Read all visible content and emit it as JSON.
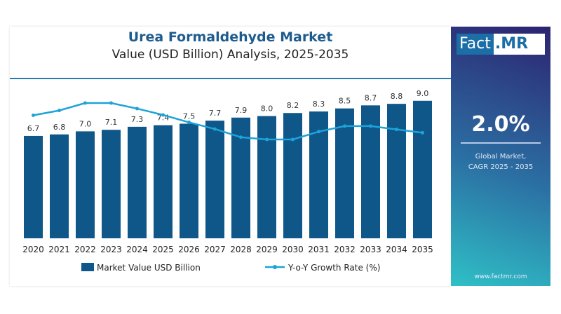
{
  "header": {
    "title": "Urea Formaldehyde Market",
    "subtitle": "Value (USD Billion) Analysis, 2025-2035"
  },
  "panel": {
    "logo_part1": "Fact",
    "logo_part2": ".MR",
    "cagr": "2.0%",
    "caption_line1": "Global Market,",
    "caption_line2": "CAGR 2025 - 2035",
    "url": "www.factmr.com"
  },
  "colors": {
    "bar": "#0f5689",
    "line": "#1ea3d8",
    "title": "#1e5c8e"
  },
  "chart_data": {
    "type": "bar+line",
    "categories": [
      "2020",
      "2021",
      "2022",
      "2023",
      "2024",
      "2025",
      "2026",
      "2027",
      "2028",
      "2029",
      "2030",
      "2031",
      "2032",
      "2033",
      "2034",
      "2035"
    ],
    "series": [
      {
        "name": "Market Value USD Billion",
        "type": "bar",
        "values": [
          6.7,
          6.8,
          7.0,
          7.1,
          7.3,
          7.4,
          7.5,
          7.7,
          7.9,
          8.0,
          8.2,
          8.3,
          8.5,
          8.7,
          8.8,
          9.0
        ],
        "labels": [
          "6.7",
          "6.8",
          "7.0",
          "7.1",
          "7.3",
          "7.4",
          "7.5",
          "7.7",
          "7.9",
          "8.0",
          "8.2",
          "8.3",
          "8.5",
          "8.7",
          "8.8",
          "9.0"
        ]
      },
      {
        "name": "Y-o-Y Growth Rate (%)",
        "type": "line",
        "values": [
          2.27,
          2.4,
          2.6,
          2.6,
          2.45,
          2.28,
          2.08,
          1.9,
          1.68,
          1.62,
          1.62,
          1.83,
          1.98,
          1.98,
          1.89,
          1.8
        ]
      }
    ],
    "ylim": [
      0,
      9
    ],
    "grid": false,
    "legend": "bottom"
  }
}
